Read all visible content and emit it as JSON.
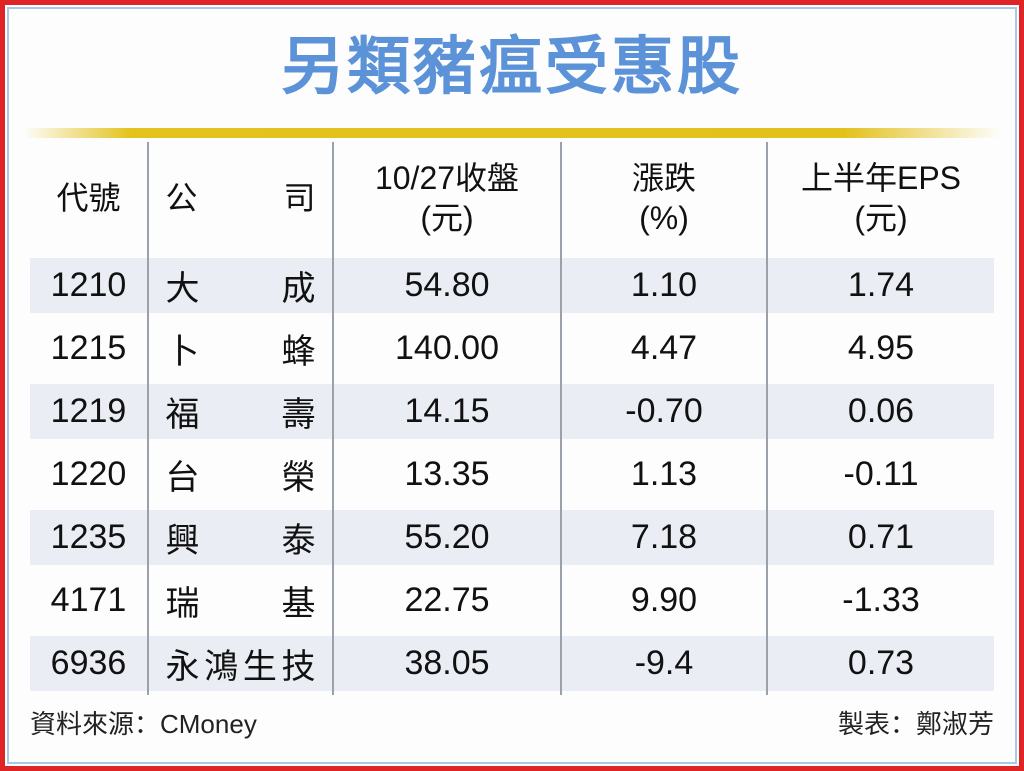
{
  "page": {
    "title": "另類豬瘟受惠股",
    "colors": {
      "outer_border_red": "#de2424",
      "inner_border_blue": "#a9c8e1",
      "title_blue": "#5b92d8",
      "divider_yellow": "#e4c31e",
      "row_band": "#eaedf4",
      "grid_line": "#9ba1a9",
      "text": "#111111"
    }
  },
  "table": {
    "columns": [
      {
        "label": "代號",
        "sub": ""
      },
      {
        "label": "公司",
        "sub": ""
      },
      {
        "label": "10/27收盤",
        "sub": "(元)"
      },
      {
        "label": "漲跌",
        "sub": "(%)"
      },
      {
        "label": "上半年EPS",
        "sub": "(元)"
      }
    ],
    "rows": [
      {
        "code": "1210",
        "company": "大成",
        "close": "54.80",
        "change": "1.10",
        "eps": "1.74"
      },
      {
        "code": "1215",
        "company": "卜蜂",
        "close": "140.00",
        "change": "4.47",
        "eps": "4.95"
      },
      {
        "code": "1219",
        "company": "福壽",
        "close": "14.15",
        "change": "-0.70",
        "eps": "0.06"
      },
      {
        "code": "1220",
        "company": "台榮",
        "close": "13.35",
        "change": "1.13",
        "eps": "-0.11"
      },
      {
        "code": "1235",
        "company": "興泰",
        "close": "55.20",
        "change": "7.18",
        "eps": "0.71"
      },
      {
        "code": "4171",
        "company": "瑞基",
        "close": "22.75",
        "change": "9.90",
        "eps": "-1.33"
      },
      {
        "code": "6936",
        "company": "永鴻生技",
        "close": "38.05",
        "change": "-9.4",
        "eps": "0.73"
      }
    ]
  },
  "footer": {
    "source": "資料來源：CMoney",
    "credit": "製表：鄭淑芳"
  },
  "chart_data": {
    "type": "table",
    "title": "另類豬瘟受惠股",
    "columns": [
      "代號",
      "公司",
      "10/27收盤(元)",
      "漲跌(%)",
      "上半年EPS(元)"
    ],
    "rows": [
      [
        "1210",
        "大成",
        54.8,
        1.1,
        1.74
      ],
      [
        "1215",
        "卜蜂",
        140.0,
        4.47,
        4.95
      ],
      [
        "1219",
        "福壽",
        14.15,
        -0.7,
        0.06
      ],
      [
        "1220",
        "台榮",
        13.35,
        1.13,
        -0.11
      ],
      [
        "1235",
        "興泰",
        55.2,
        7.18,
        0.71
      ],
      [
        "4171",
        "瑞基",
        22.75,
        9.9,
        -1.33
      ],
      [
        "6936",
        "永鴻生技",
        38.05,
        -9.4,
        0.73
      ]
    ],
    "source": "CMoney",
    "credit": "鄭淑芳"
  }
}
